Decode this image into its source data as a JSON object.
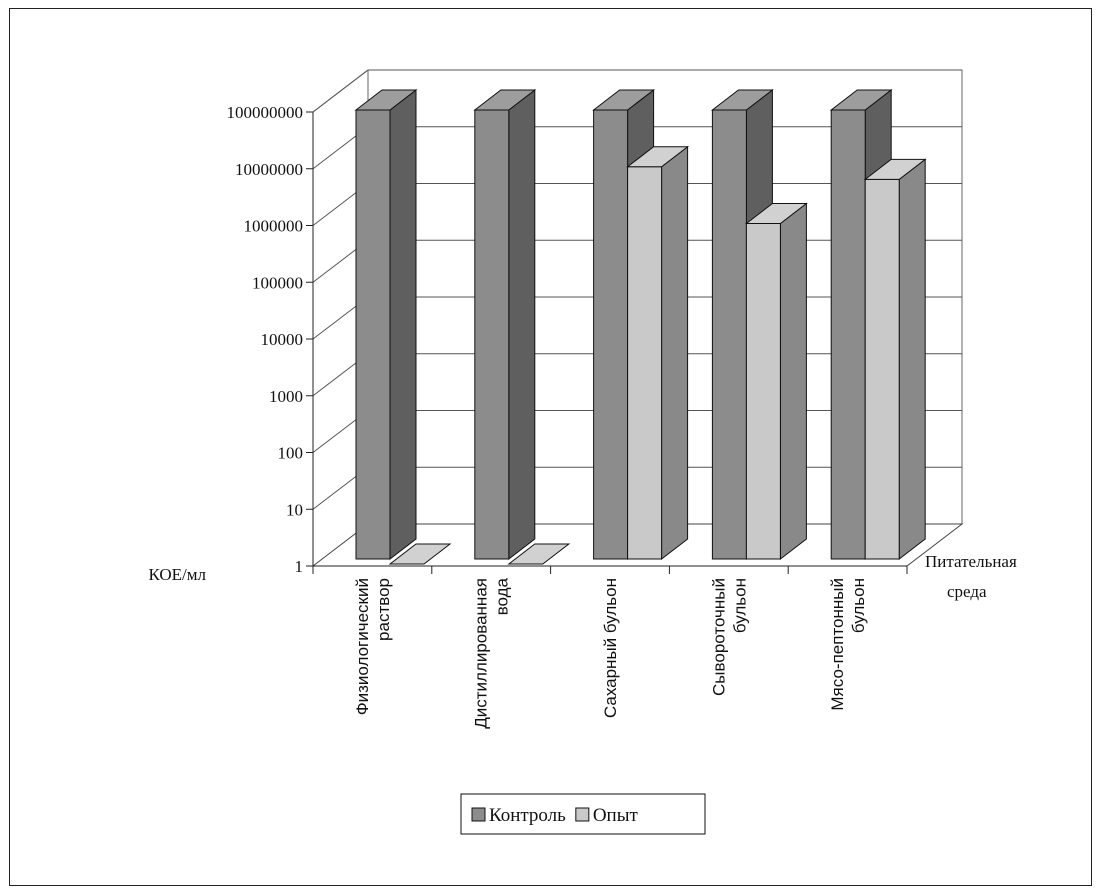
{
  "chart_data": {
    "type": "bar",
    "title": "",
    "ylabel": "КОЕ/мл",
    "xlabel": "Питательная среда",
    "xlabel_lines": [
      "Питательная",
      "среда"
    ],
    "y_scale": "log",
    "ylim": [
      1,
      100000000
    ],
    "y_ticks": [
      "1",
      "10",
      "100",
      "1000",
      "10000",
      "100000",
      "1000000",
      "10000000",
      "100000000"
    ],
    "categories": [
      [
        "Физиологический",
        "раствор"
      ],
      [
        "Дистиллированная",
        "вода"
      ],
      [
        "Сахарный бульон"
      ],
      [
        "Сывороточный",
        "бульон"
      ],
      [
        "Мясо-пептонный",
        "бульон"
      ]
    ],
    "series": [
      {
        "name": "Контроль",
        "color": "#8c8c8c",
        "values": [
          100000000,
          100000000,
          100000000,
          100000000,
          100000000
        ]
      },
      {
        "name": "Опыт",
        "color": "#c9c9c9",
        "values": [
          1,
          1,
          10000000,
          1000000,
          6000000
        ]
      }
    ],
    "grid": true,
    "legend": "bottom-center",
    "view": "3d"
  }
}
